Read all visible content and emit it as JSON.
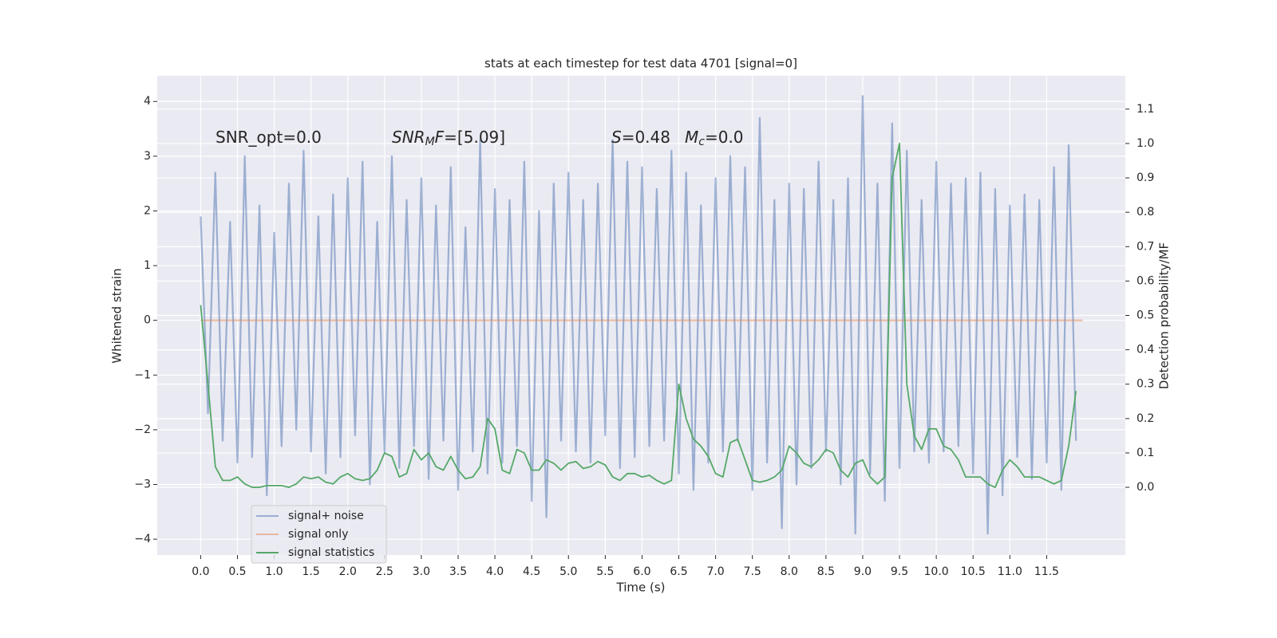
{
  "chart_data": {
    "type": "line",
    "title": "stats at each timestep for test data 4701 [signal=0]",
    "xlabel": "Time (s)",
    "ylabel": "Whitened strain",
    "y2label": "Detection probability/MF",
    "annotations": [
      [
        {
          "text": "SNR_opt=0.0"
        }
      ],
      [
        {
          "text": "SNR",
          "style": "italic"
        },
        {
          "text": "M",
          "style": "sub"
        },
        {
          "text": "F",
          "style": "italic"
        },
        {
          "text": "=[5.09]"
        }
      ],
      [
        {
          "text": "S",
          "style": "italic"
        },
        {
          "text": "=0.48"
        }
      ],
      [
        {
          "text": "M",
          "style": "italic"
        },
        {
          "text": "c",
          "style": "sub"
        },
        {
          "text": "=0.0"
        }
      ]
    ],
    "x": [
      0,
      0.1,
      0.2,
      0.3,
      0.4,
      0.5,
      0.6,
      0.7,
      0.8,
      0.9,
      1,
      1.1,
      1.2,
      1.3,
      1.4,
      1.5,
      1.6,
      1.7,
      1.8,
      1.9,
      2,
      2.1,
      2.2,
      2.3,
      2.4,
      2.5,
      2.6,
      2.7,
      2.8,
      2.9,
      3,
      3.1,
      3.2,
      3.3,
      3.4,
      3.5,
      3.6,
      3.7,
      3.8,
      3.9,
      4,
      4.1,
      4.2,
      4.3,
      4.4,
      4.5,
      4.6,
      4.7,
      4.8,
      4.9,
      5,
      5.1,
      5.2,
      5.3,
      5.4,
      5.5,
      5.6,
      5.7,
      5.8,
      5.9,
      6,
      6.1,
      6.2,
      6.3,
      6.4,
      6.5,
      6.6,
      6.7,
      6.8,
      6.9,
      7,
      7.1,
      7.2,
      7.3,
      7.4,
      7.5,
      7.6,
      7.7,
      7.8,
      7.9,
      8,
      8.1,
      8.2,
      8.3,
      8.4,
      8.5,
      8.6,
      8.7,
      8.8,
      8.9,
      9,
      9.1,
      9.2,
      9.3,
      9.4,
      9.5,
      9.6,
      9.7,
      9.8,
      9.9,
      10,
      10.1,
      10.2,
      10.3,
      10.4,
      10.5,
      10.6,
      10.7,
      10.8,
      10.9,
      11,
      11.1,
      11.2,
      11.3,
      11.4,
      11.5,
      11.6,
      11.7,
      11.8,
      11.9
    ],
    "series": [
      {
        "name": "signal+ noise",
        "color": "#4c72b0",
        "opacity": 0.5,
        "values": [
          1.9,
          -1.7,
          2.7,
          -2.2,
          1.8,
          -2.6,
          3.0,
          -2.5,
          2.1,
          -3.2,
          1.6,
          -2.3,
          2.5,
          -2.0,
          3.1,
          -2.4,
          1.9,
          -2.8,
          2.3,
          -2.5,
          2.6,
          -2.1,
          2.9,
          -3.0,
          1.8,
          -2.4,
          3.0,
          -2.7,
          2.2,
          -2.3,
          2.6,
          -2.9,
          2.1,
          -2.2,
          2.8,
          -3.1,
          1.7,
          -2.4,
          3.3,
          -2.8,
          2.4,
          -2.6,
          2.2,
          -2.3,
          2.9,
          -3.3,
          2.0,
          -3.6,
          2.5,
          -2.2,
          2.7,
          -2.4,
          2.2,
          -2.6,
          2.5,
          -2.1,
          3.3,
          -2.7,
          2.9,
          -2.5,
          2.8,
          -2.3,
          2.4,
          -2.2,
          3.1,
          -2.8,
          2.7,
          -3.1,
          2.1,
          -2.6,
          2.6,
          -2.4,
          3.0,
          -2.2,
          2.8,
          -3.1,
          3.7,
          -2.6,
          2.2,
          -3.8,
          2.5,
          -3.0,
          2.4,
          -2.7,
          2.9,
          -2.4,
          2.2,
          -3.0,
          2.6,
          -3.9,
          4.1,
          -2.8,
          2.5,
          -3.3,
          3.6,
          -2.7,
          3.1,
          -2.4,
          2.2,
          -2.6,
          2.9,
          -2.4,
          2.5,
          -2.3,
          2.6,
          -2.8,
          2.7,
          -3.9,
          2.4,
          -3.2,
          2.1,
          -2.5,
          2.3,
          -2.9,
          2.2,
          -2.6,
          2.8,
          -3.1,
          3.2,
          -2.2
        ]
      },
      {
        "name": "signal only",
        "color": "#dd8452",
        "opacity": 0.5,
        "x": [
          0,
          11.99
        ],
        "values": [
          0,
          0
        ]
      },
      {
        "name": "signal statistics",
        "color": "#55a868",
        "opacity": 1,
        "axis": "y2",
        "values": [
          0.53,
          0.3,
          0.06,
          0.02,
          0.02,
          0.03,
          0.01,
          0.0,
          0.0,
          0.005,
          0.005,
          0.005,
          0.0,
          0.01,
          0.03,
          0.025,
          0.03,
          0.015,
          0.01,
          0.03,
          0.04,
          0.025,
          0.02,
          0.025,
          0.05,
          0.1,
          0.09,
          0.03,
          0.04,
          0.11,
          0.08,
          0.1,
          0.06,
          0.05,
          0.09,
          0.05,
          0.025,
          0.03,
          0.06,
          0.2,
          0.17,
          0.05,
          0.04,
          0.11,
          0.1,
          0.05,
          0.05,
          0.08,
          0.07,
          0.05,
          0.07,
          0.075,
          0.055,
          0.06,
          0.075,
          0.065,
          0.03,
          0.02,
          0.04,
          0.04,
          0.03,
          0.035,
          0.02,
          0.01,
          0.02,
          0.3,
          0.2,
          0.14,
          0.12,
          0.09,
          0.04,
          0.03,
          0.13,
          0.14,
          0.08,
          0.02,
          0.015,
          0.02,
          0.03,
          0.05,
          0.12,
          0.1,
          0.07,
          0.06,
          0.08,
          0.11,
          0.1,
          0.05,
          0.03,
          0.07,
          0.08,
          0.03,
          0.01,
          0.03,
          0.9,
          1.0,
          0.3,
          0.15,
          0.11,
          0.17,
          0.17,
          0.12,
          0.11,
          0.08,
          0.03,
          0.03,
          0.03,
          0.01,
          0.0,
          0.05,
          0.08,
          0.06,
          0.03,
          0.03,
          0.03,
          0.02,
          0.01,
          0.02,
          0.12,
          0.28
        ]
      }
    ],
    "xlim": [
      -0.59,
      12.57
    ],
    "ylim": [
      -4.29,
      4.47
    ],
    "y2lim": [
      -0.197,
      1.197
    ],
    "xticks": [
      {
        "value": 0,
        "label": "0.0"
      },
      0.5,
      {
        "value": 1,
        "label": "1.0"
      },
      1.5,
      {
        "value": 2,
        "label": "2.0"
      },
      2.5,
      {
        "value": 3,
        "label": "3.0"
      },
      3.5,
      {
        "value": 4,
        "label": "4.0"
      },
      4.5,
      {
        "value": 5,
        "label": "5.0"
      },
      5.5,
      {
        "value": 6,
        "label": "6.0"
      },
      6.5,
      {
        "value": 7,
        "label": "7.0"
      },
      7.5,
      {
        "value": 8,
        "label": "8.0"
      },
      8.5,
      {
        "value": 9,
        "label": "9.0"
      },
      9.5,
      {
        "value": 10,
        "label": "10.0"
      },
      10.5,
      {
        "value": 11,
        "label": "11.0"
      },
      11.5
    ],
    "yticks": [
      {
        "value": -4,
        "label": "−4"
      },
      {
        "value": -3,
        "label": "−3"
      },
      {
        "value": -2,
        "label": "−2"
      },
      {
        "value": -1,
        "label": "−1"
      },
      0,
      1,
      2,
      3,
      4
    ],
    "y2ticks": [
      {
        "value": 0,
        "label": "0.0"
      },
      0.1,
      0.2,
      0.3,
      0.4,
      0.5,
      0.6,
      0.7,
      0.8,
      0.9,
      {
        "value": 1,
        "label": "1.0"
      },
      1.1
    ],
    "grid": true,
    "legend": "lower left",
    "background": "#eaeaf2"
  }
}
